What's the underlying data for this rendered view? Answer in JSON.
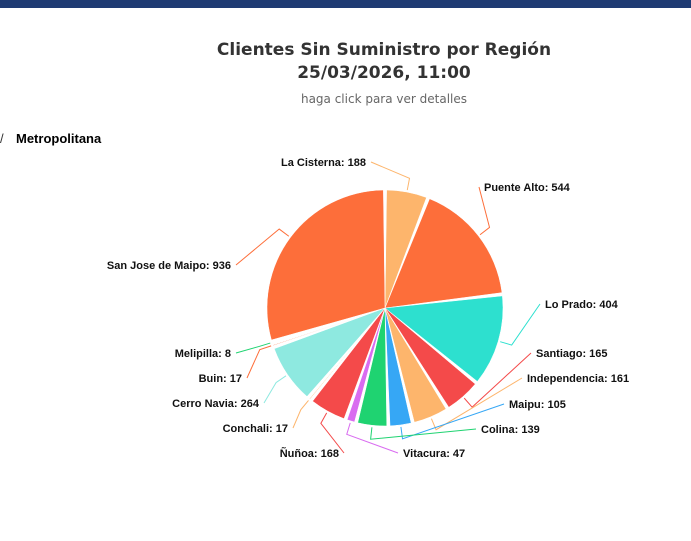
{
  "header": {
    "title_line1": "Clientes Sin Suministro por Región",
    "title_line2": "25/03/2026, 11:00",
    "hint": "haga click para ver detalles"
  },
  "breadcrumb": {
    "separator": "/",
    "current": "Metropolitana"
  },
  "colors": {
    "topbar": "#1f3b73"
  },
  "chart_data": {
    "type": "pie",
    "title": "Clientes Sin Suministro por Región",
    "subtitle": "25/03/2026, 11:00",
    "slices": [
      {
        "name": "La Cisterna",
        "value": 188,
        "label": "La Cisterna: 188",
        "color": "#fdb56c"
      },
      {
        "name": "Puente Alto",
        "value": 544,
        "label": "Puente Alto: 544",
        "color": "#fd6e3a"
      },
      {
        "name": "Lo Prado",
        "value": 404,
        "label": "Lo Prado: 404",
        "color": "#2de0cf"
      },
      {
        "name": "Santiago",
        "value": 165,
        "label": "Santiago: 165",
        "color": "#f44a4a"
      },
      {
        "name": "Independencia",
        "value": 161,
        "label": "Independencia: 161",
        "color": "#fdb56c"
      },
      {
        "name": "Maipu",
        "value": 105,
        "label": "Maipu: 105",
        "color": "#36a7f5"
      },
      {
        "name": "Colina",
        "value": 139,
        "label": "Colina: 139",
        "color": "#1fd371"
      },
      {
        "name": "Vitacura",
        "value": 47,
        "label": "Vitacura: 47",
        "color": "#d96cf0"
      },
      {
        "name": "Ñuñoa",
        "value": 168,
        "label": "Ñuñoa: 168",
        "color": "#f44a4a"
      },
      {
        "name": "Conchali",
        "value": 17,
        "label": "Conchali: 17",
        "color": "#fdb56c"
      },
      {
        "name": "Cerro Navia",
        "value": 264,
        "label": "Cerro Navia: 264",
        "color": "#8ee9e0"
      },
      {
        "name": "Buin",
        "value": 17,
        "label": "Buin: 17",
        "color": "#fd6e3a"
      },
      {
        "name": "Melipilla",
        "value": 8,
        "label": "Melipilla: 8",
        "color": "#1fd371"
      },
      {
        "name": "San Jose de Maipo",
        "value": 936,
        "label": "San Jose de Maipo: 936",
        "color": "#fd6e3a"
      }
    ]
  }
}
